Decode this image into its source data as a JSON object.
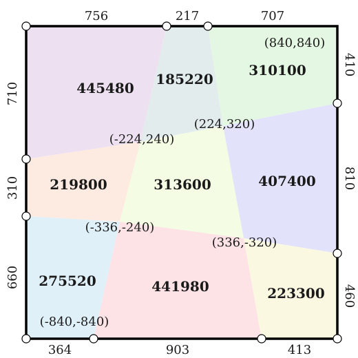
{
  "diagram": {
    "corner_labels": {
      "top_right": "(840,840)",
      "bottom_left": "(-840,-840)"
    },
    "interior_points": [
      {
        "label": "(-224,240)",
        "x": -224,
        "y": 240
      },
      {
        "label": "(224,320)",
        "x": 224,
        "y": 320
      },
      {
        "label": "(-336,-240)",
        "x": -336,
        "y": -240
      },
      {
        "label": "(336,-320)",
        "x": 336,
        "y": -320
      }
    ],
    "edge_lengths": {
      "top": [
        "756",
        "217",
        "707"
      ],
      "bottom": [
        "364",
        "903",
        "413"
      ],
      "left": [
        "710",
        "310",
        "660"
      ],
      "right": [
        "410",
        "810",
        "460"
      ]
    },
    "regions": [
      {
        "id": "top-left",
        "area": "445480",
        "color": "#ede0f0"
      },
      {
        "id": "top-middle",
        "area": "185220",
        "color": "#e2ecec"
      },
      {
        "id": "top-right",
        "area": "310100",
        "color": "#e4f7e2"
      },
      {
        "id": "middle-left",
        "area": "219800",
        "color": "#fdebe2"
      },
      {
        "id": "center",
        "area": "313600",
        "color": "#f4fde4"
      },
      {
        "id": "middle-right",
        "area": "407400",
        "color": "#e2e2fb"
      },
      {
        "id": "bottom-left",
        "area": "275520",
        "color": "#e0f0f9"
      },
      {
        "id": "bottom-middle",
        "area": "441980",
        "color": "#fde2e6"
      },
      {
        "id": "bottom-right",
        "area": "223300",
        "color": "#fbf8e2"
      }
    ]
  }
}
